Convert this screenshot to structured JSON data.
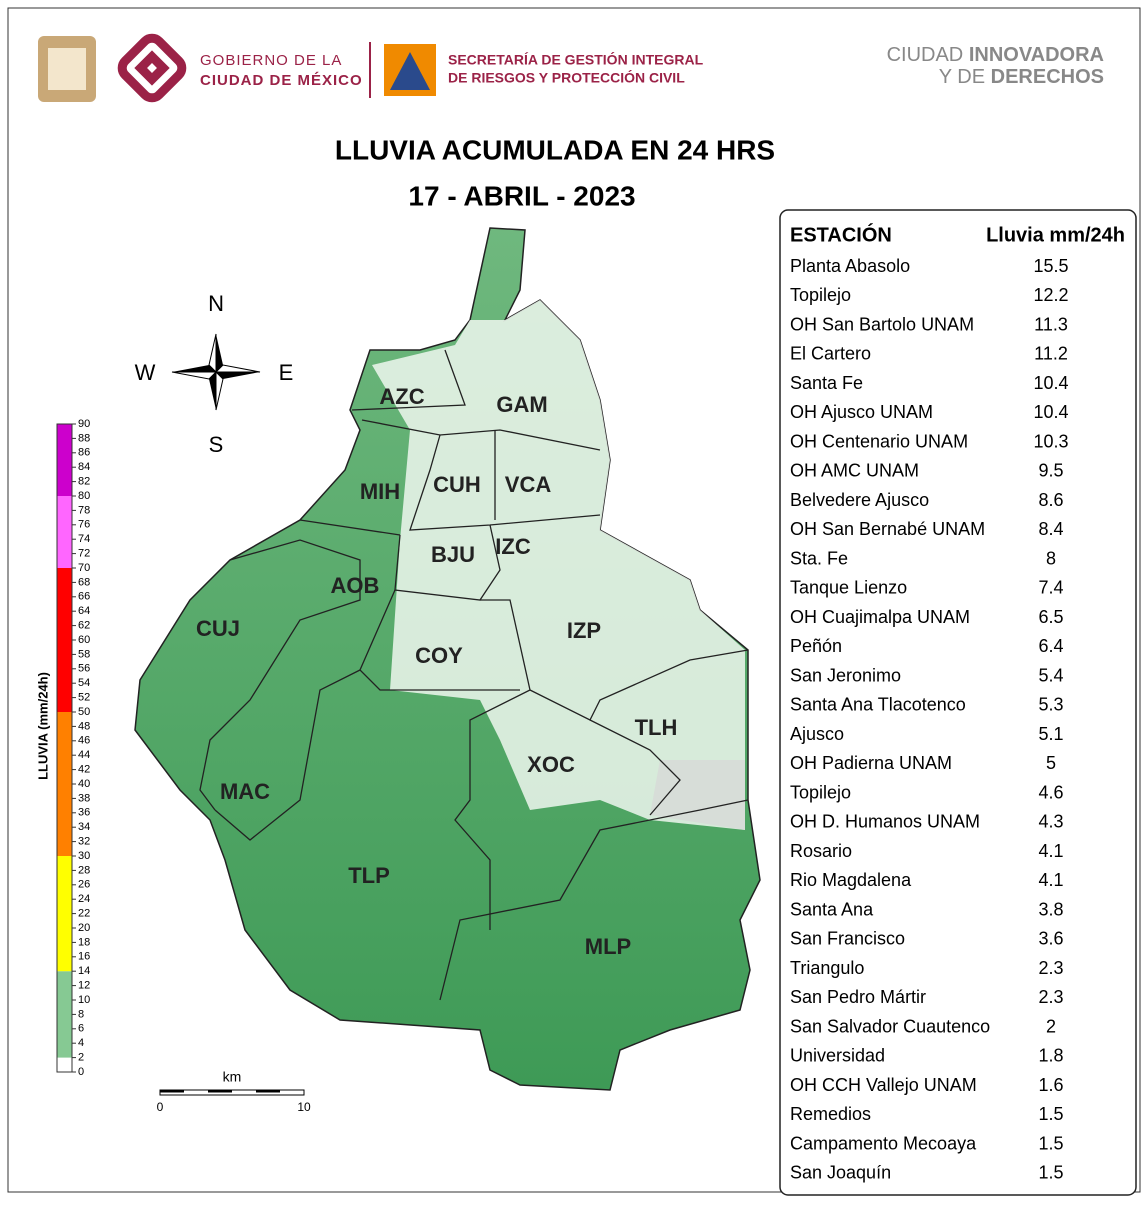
{
  "header": {
    "gov_line1": "GOBIERNO DE LA",
    "gov_line2": "CIUDAD DE MÉXICO",
    "sec_line1": "SECRETARÍA DE GESTIÓN INTEGRAL",
    "sec_line2": "DE RIESGOS Y PROTECCIÓN CIVIL",
    "right_line1_a": "CIUDAD",
    "right_line1_b": "INNOVADORA",
    "right_line2_a": "Y DE",
    "right_line2_b": "DERECHOS"
  },
  "title": "LLUVIA ACUMULADA EN 24 HRS",
  "date": "17 - ABRIL - 2023",
  "compass": {
    "n": "N",
    "s": "S",
    "w": "W",
    "e": "E"
  },
  "districts": [
    "AZC",
    "GAM",
    "MIH",
    "CUH",
    "VCA",
    "BJU",
    "IZC",
    "AOB",
    "CUJ",
    "COY",
    "IZP",
    "TLH",
    "XOC",
    "MAC",
    "TLP",
    "MLP"
  ],
  "colorbar": {
    "label": "LLUVIA (mm/24h)",
    "min": 0,
    "max": 90,
    "ticks": [
      0,
      2,
      4,
      6,
      8,
      10,
      12,
      14,
      16,
      18,
      20,
      22,
      24,
      26,
      28,
      30,
      32,
      34,
      36,
      38,
      40,
      42,
      44,
      46,
      48,
      50,
      52,
      54,
      56,
      58,
      60,
      62,
      64,
      66,
      68,
      70,
      72,
      74,
      76,
      78,
      80,
      82,
      84,
      86,
      88,
      90
    ],
    "bands": [
      {
        "from": 0,
        "to": 2,
        "color": "#ffffff"
      },
      {
        "from": 2,
        "to": 14,
        "color": "#86c993"
      },
      {
        "from": 14,
        "to": 30,
        "color": "#ffff00"
      },
      {
        "from": 30,
        "to": 50,
        "color": "#ff8000"
      },
      {
        "from": 50,
        "to": 70,
        "color": "#ff0000"
      },
      {
        "from": 70,
        "to": 80,
        "color": "#ff66ff"
      },
      {
        "from": 80,
        "to": 90,
        "color": "#cc00cc"
      }
    ]
  },
  "scale_bar": {
    "unit": "km",
    "start": 0,
    "end": 10
  },
  "table": {
    "header": [
      "ESTACIÓN",
      "Lluvia mm/24h"
    ],
    "rows": [
      [
        "Planta Abasolo",
        15.5
      ],
      [
        "Topilejo",
        12.2
      ],
      [
        "OH San Bartolo UNAM",
        11.3
      ],
      [
        "El Cartero",
        11.2
      ],
      [
        "Santa Fe",
        10.4
      ],
      [
        "OH Ajusco UNAM",
        10.4
      ],
      [
        "OH Centenario UNAM",
        10.3
      ],
      [
        "OH AMC UNAM",
        9.5
      ],
      [
        "Belvedere Ajusco",
        8.6
      ],
      [
        "OH San Bernabé UNAM",
        8.4
      ],
      [
        "Sta. Fe",
        8
      ],
      [
        "Tanque Lienzo",
        7.4
      ],
      [
        "OH Cuajimalpa UNAM",
        6.5
      ],
      [
        "Peñón",
        6.4
      ],
      [
        "San Jeronimo",
        5.4
      ],
      [
        "Santa Ana Tlacotenco",
        5.3
      ],
      [
        "Ajusco",
        5.1
      ],
      [
        "OH Padierna UNAM",
        5
      ],
      [
        "Topilejo",
        4.6
      ],
      [
        "OH D. Humanos UNAM",
        4.3
      ],
      [
        "Rosario",
        4.1
      ],
      [
        "Rio Magdalena",
        4.1
      ],
      [
        "Santa Ana",
        3.8
      ],
      [
        "San Francisco",
        3.6
      ],
      [
        "Triangulo",
        2.3
      ],
      [
        "San Pedro Mártir",
        2.3
      ],
      [
        "San Salvador Cuautenco",
        2
      ],
      [
        "Universidad",
        1.8
      ],
      [
        "OH CCH Vallejo UNAM",
        1.6
      ],
      [
        "Remedios",
        1.5
      ],
      [
        "Campamento Mecoaya",
        1.5
      ],
      [
        "San Joaquín",
        1.5
      ]
    ]
  }
}
